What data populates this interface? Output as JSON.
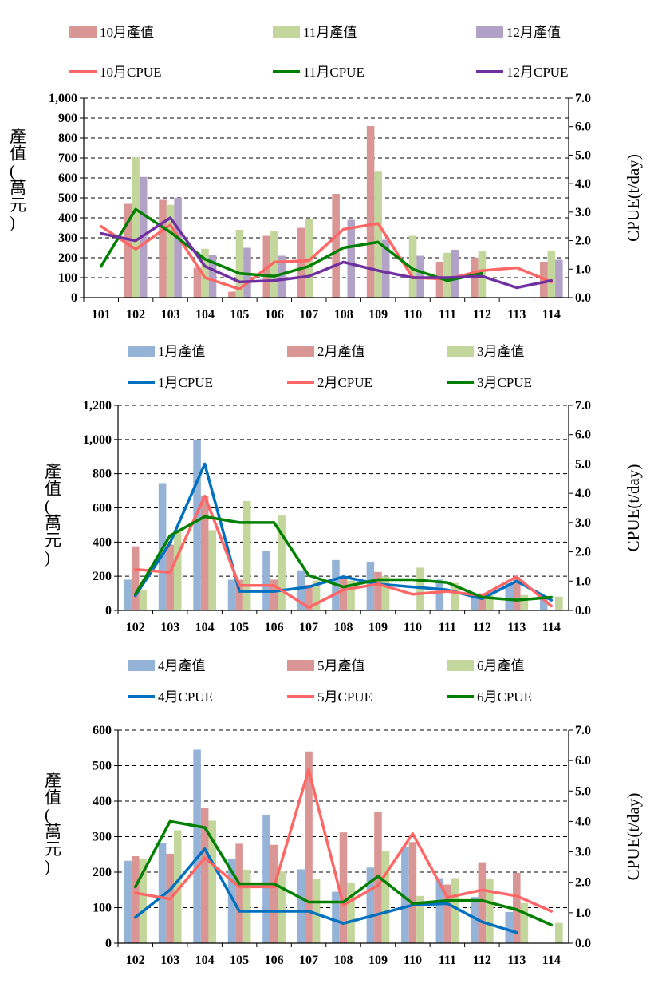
{
  "chart_data": [
    {
      "type": "bar+line",
      "title": "",
      "categories": [
        "101",
        "102",
        "103",
        "104",
        "105",
        "106",
        "107",
        "108",
        "109",
        "110",
        "111",
        "112",
        "113",
        "114"
      ],
      "ylabel": "產值(萬元)",
      "y2label": "CPUE(t/day)",
      "ylim": [
        0,
        1000
      ],
      "y_ticks": [
        "0",
        "100",
        "200",
        "300",
        "400",
        "500",
        "600",
        "700",
        "800",
        "900",
        "1,000"
      ],
      "y2lim": [
        0,
        7
      ],
      "y2_ticks": [
        "0.0",
        "1.0",
        "2.0",
        "3.0",
        "4.0",
        "5.0",
        "6.0",
        "7.0"
      ],
      "bar_series": [
        {
          "name": "10月產值",
          "color": "#d99694",
          "values": [
            null,
            470,
            490,
            150,
            30,
            310,
            350,
            520,
            860,
            null,
            180,
            200,
            null,
            180
          ]
        },
        {
          "name": "11月產值",
          "color": "#c3d69b",
          "values": [
            null,
            705,
            465,
            245,
            340,
            335,
            395,
            null,
            635,
            310,
            225,
            235,
            null,
            235
          ]
        },
        {
          "name": "12月產值",
          "color": "#b3a2c7",
          "values": [
            null,
            605,
            500,
            215,
            250,
            210,
            null,
            390,
            290,
            210,
            240,
            null,
            null,
            190
          ]
        }
      ],
      "line_series": [
        {
          "name": "10月CPUE",
          "color": "#ff6666",
          "values": [
            2.5,
            1.7,
            2.55,
            0.7,
            0.3,
            1.25,
            1.3,
            2.4,
            2.6,
            0.7,
            0.65,
            0.95,
            1.05,
            0.55
          ]
        },
        {
          "name": "11月CPUE",
          "color": "#008000",
          "values": [
            1.1,
            3.1,
            2.3,
            1.35,
            0.85,
            0.75,
            1.1,
            1.75,
            1.95,
            1.0,
            0.6,
            0.85,
            null,
            null
          ]
        },
        {
          "name": "12月CPUE",
          "color": "#7030a0",
          "values": [
            2.25,
            2.0,
            2.8,
            1.1,
            0.55,
            0.6,
            0.75,
            1.25,
            0.95,
            0.7,
            0.7,
            0.75,
            0.35,
            0.6
          ]
        }
      ]
    },
    {
      "type": "bar+line",
      "title": "",
      "categories": [
        "102",
        "103",
        "104",
        "105",
        "106",
        "107",
        "108",
        "109",
        "110",
        "111",
        "112",
        "113",
        "114"
      ],
      "ylabel": "產值(萬元)",
      "y2label": "CPUE(t/day)",
      "ylim": [
        0,
        1200
      ],
      "y_ticks": [
        "0",
        "200",
        "400",
        "600",
        "800",
        "1,000",
        "1,200"
      ],
      "y2lim": [
        0,
        7
      ],
      "y2_ticks": [
        "0.0",
        "1.0",
        "2.0",
        "3.0",
        "4.0",
        "5.0",
        "6.0",
        "7.0"
      ],
      "bar_series": [
        {
          "name": "1月產值",
          "color": "#95b3d7",
          "values": [
            180,
            745,
            995,
            180,
            350,
            235,
            295,
            285,
            null,
            180,
            90,
            160,
            80
          ]
        },
        {
          "name": "2月產值",
          "color": "#d99694",
          "values": [
            375,
            385,
            670,
            180,
            180,
            150,
            190,
            225,
            null,
            null,
            100,
            190,
            null
          ]
        },
        {
          "name": "3月產值",
          "color": "#c3d69b",
          "values": [
            120,
            465,
            470,
            640,
            555,
            175,
            175,
            200,
            250,
            160,
            90,
            90,
            80
          ]
        }
      ],
      "line_series": [
        {
          "name": "1月CPUE",
          "color": "#0070c0",
          "values": [
            0.5,
            2.3,
            5.0,
            0.65,
            0.65,
            0.8,
            1.15,
            0.9,
            0.8,
            0.7,
            0.4,
            1.0,
            0.35
          ]
        },
        {
          "name": "2月CPUE",
          "color": "#ff6666",
          "values": [
            1.4,
            1.3,
            3.9,
            0.85,
            0.85,
            0.1,
            0.7,
            0.9,
            0.55,
            0.65,
            0.5,
            1.15,
            0.15
          ]
        },
        {
          "name": "3月CPUE",
          "color": "#008000",
          "values": [
            0.55,
            2.55,
            3.2,
            3.0,
            3.0,
            1.2,
            0.8,
            1.05,
            1.05,
            0.95,
            0.45,
            0.35,
            0.45
          ]
        }
      ]
    },
    {
      "type": "bar+line",
      "title": "",
      "categories": [
        "102",
        "103",
        "104",
        "105",
        "106",
        "107",
        "108",
        "109",
        "110",
        "111",
        "112",
        "113",
        "114"
      ],
      "ylabel": "產值(萬元)",
      "y2label": "CPUE(t/day)",
      "ylim": [
        0,
        600
      ],
      "y_ticks": [
        "0",
        "100",
        "200",
        "300",
        "400",
        "500",
        "600"
      ],
      "y2lim": [
        0,
        7
      ],
      "y2_ticks": [
        "0.0",
        "1.0",
        "2.0",
        "3.0",
        "4.0",
        "5.0",
        "6.0",
        "7.0"
      ],
      "bar_series": [
        {
          "name": "4月產值",
          "color": "#95b3d7",
          "values": [
            232,
            282,
            545,
            238,
            362,
            208,
            145,
            213,
            270,
            183,
            130,
            88,
            null
          ]
        },
        {
          "name": "5月產值",
          "color": "#d99694",
          "values": [
            245,
            252,
            380,
            280,
            277,
            540,
            312,
            370,
            285,
            165,
            228,
            198,
            null
          ]
        },
        {
          "name": "6月產值",
          "color": "#c3d69b",
          "values": [
            238,
            318,
            345,
            207,
            202,
            182,
            170,
            260,
            133,
            183,
            180,
            113,
            57
          ]
        }
      ],
      "line_series": [
        {
          "name": "4月CPUE",
          "color": "#0070c0",
          "values": [
            0.85,
            1.75,
            3.1,
            1.05,
            1.05,
            1.05,
            0.65,
            0.95,
            1.25,
            1.3,
            0.7,
            0.35,
            null
          ]
        },
        {
          "name": "5月CPUE",
          "color": "#ff6666",
          "values": [
            1.65,
            1.45,
            2.8,
            1.85,
            1.85,
            5.7,
            1.25,
            1.9,
            3.6,
            1.5,
            1.75,
            1.55,
            1.05
          ]
        },
        {
          "name": "6月CPUE",
          "color": "#008000",
          "values": [
            1.85,
            4.0,
            3.8,
            1.95,
            1.95,
            1.35,
            1.35,
            2.2,
            1.3,
            1.4,
            1.4,
            1.1,
            0.6
          ]
        }
      ]
    }
  ]
}
